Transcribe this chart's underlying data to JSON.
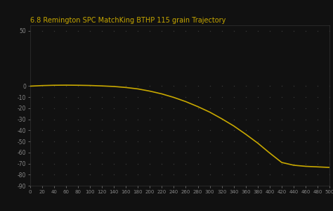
{
  "title": "6.8 Remington SPC MatchKing BTHP 115 grain Trajectory",
  "title_color": "#c8a800",
  "bg_color": "#111111",
  "plot_bg_color": "#111111",
  "line_color": "#c8a800",
  "dot_color": "#3a3a3a",
  "tick_color": "#888888",
  "x_ticks": [
    0,
    20,
    40,
    60,
    80,
    100,
    120,
    140,
    160,
    180,
    200,
    220,
    240,
    260,
    280,
    300,
    320,
    340,
    360,
    380,
    400,
    420,
    440,
    460,
    480,
    500
  ],
  "y_ticks": [
    50,
    0,
    -10,
    -20,
    -30,
    -40,
    -50,
    -60,
    -70,
    -80,
    -90
  ],
  "xlim": [
    0,
    500
  ],
  "ylim": [
    -90,
    55
  ],
  "x_vals": [
    0,
    20,
    40,
    60,
    80,
    100,
    120,
    140,
    160,
    180,
    200,
    220,
    240,
    260,
    280,
    300,
    320,
    340,
    360,
    380,
    400,
    420,
    440,
    460,
    480,
    500
  ],
  "y_vals": [
    0.0,
    0.5,
    0.8,
    0.9,
    0.8,
    0.6,
    0.2,
    -0.3,
    -1.2,
    -2.5,
    -4.5,
    -7.0,
    -10.2,
    -14.0,
    -18.5,
    -23.5,
    -29.5,
    -36.0,
    -43.5,
    -51.5,
    -60.5,
    -69.0,
    -71.5,
    -72.5,
    -73.0,
    -73.5
  ]
}
